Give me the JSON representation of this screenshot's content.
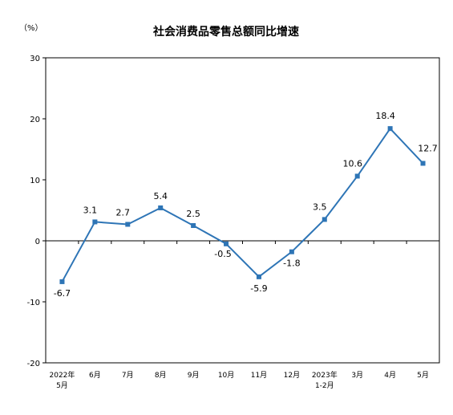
{
  "chart_data": {
    "type": "line",
    "title": "社会消费品零售总额同比增速",
    "unit_label": "（%）",
    "xlabel": "",
    "ylabel": "",
    "ylim": [
      -20,
      30
    ],
    "yticks": [
      "30",
      "20",
      "10",
      "0",
      "-10",
      "-20"
    ],
    "categories": [
      [
        "2022年",
        "5月"
      ],
      [
        "6月"
      ],
      [
        "7月"
      ],
      [
        "8月"
      ],
      [
        "9月"
      ],
      [
        "10月"
      ],
      [
        "11月"
      ],
      [
        "12月"
      ],
      [
        "2023年",
        "1-2月"
      ],
      [
        "3月"
      ],
      [
        "4月"
      ],
      [
        "5月"
      ]
    ],
    "series": [
      {
        "values": [
          -6.7,
          3.1,
          2.7,
          5.4,
          2.5,
          -0.5,
          -5.9,
          -1.8,
          3.5,
          10.6,
          18.4,
          12.7
        ],
        "labels": [
          "-6.7",
          "3.1",
          "2.7",
          "5.4",
          "2.5",
          "-0.5",
          "-5.9",
          "-1.8",
          "3.5",
          "10.6",
          "18.4",
          "12.7"
        ],
        "color": "#2E75B6"
      }
    ],
    "grid": false,
    "legend": "none"
  }
}
